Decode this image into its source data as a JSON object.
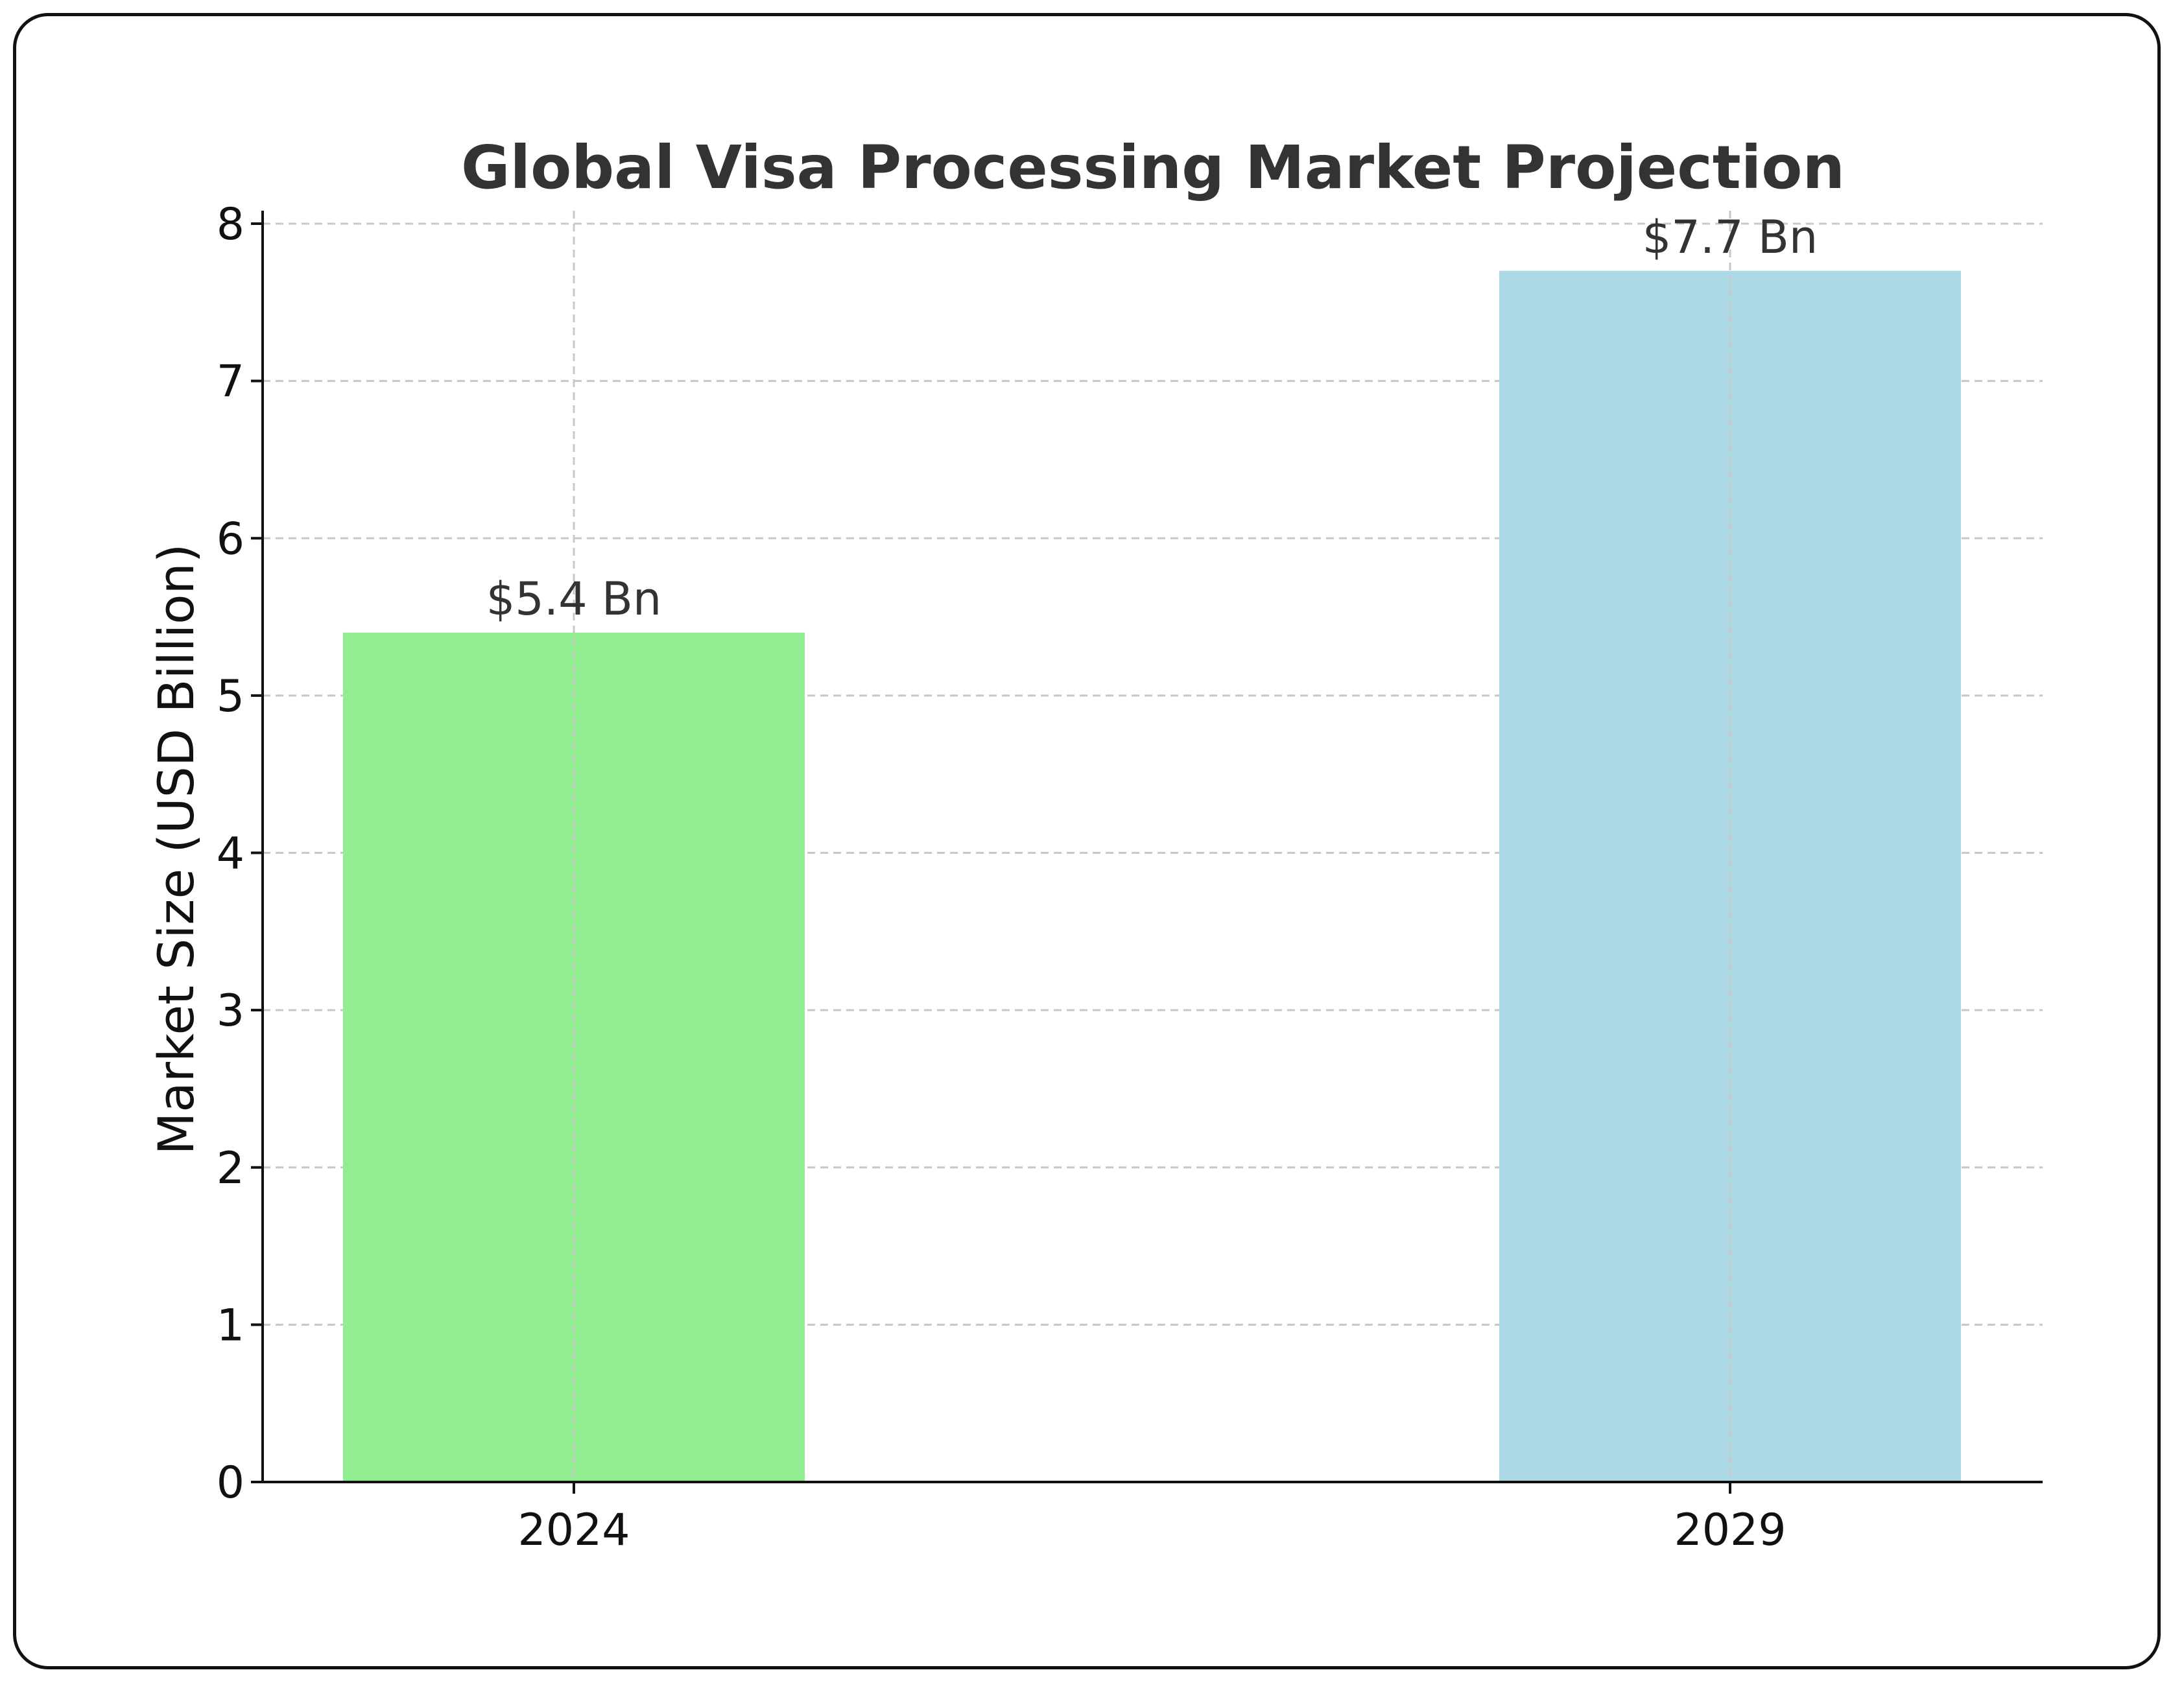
{
  "chart_data": {
    "type": "bar",
    "title": "Global Visa Processing Market Projection",
    "xlabel": "",
    "ylabel": "Market Size (USD Billion)",
    "categories": [
      "2024",
      "2029"
    ],
    "values": [
      5.4,
      7.7
    ],
    "data_labels": [
      "$5.4 Bn",
      "$7.7 Bn"
    ],
    "colors": [
      "#90ee90",
      "#add8e6"
    ],
    "ylim": [
      0,
      8
    ],
    "yticks": [
      0,
      1,
      2,
      3,
      4,
      5,
      6,
      7,
      8
    ],
    "grid": true
  }
}
